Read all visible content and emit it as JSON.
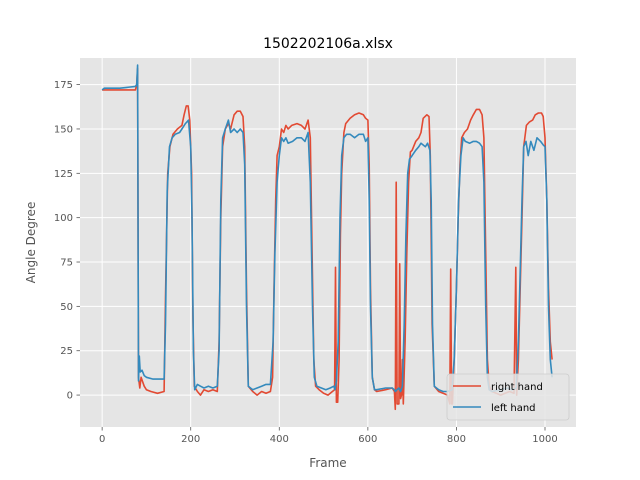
{
  "chart_data": {
    "type": "line",
    "title": "1502202106a.xlsx",
    "xlabel": "Frame",
    "ylabel": "Angle Degree",
    "xlim": [
      -50,
      1070
    ],
    "ylim": [
      -18,
      190
    ],
    "xticks": [
      0,
      200,
      400,
      600,
      800,
      1000
    ],
    "yticks": [
      0,
      25,
      50,
      75,
      100,
      125,
      150,
      175
    ],
    "grid": true,
    "legend": "lower-right",
    "series": [
      {
        "name": "right hand",
        "color": "#E24A33",
        "points": [
          [
            0,
            172
          ],
          [
            40,
            172
          ],
          [
            75,
            172
          ],
          [
            78,
            175
          ],
          [
            80,
            184
          ],
          [
            82,
            10
          ],
          [
            85,
            4
          ],
          [
            88,
            10
          ],
          [
            95,
            5
          ],
          [
            100,
            3
          ],
          [
            110,
            2
          ],
          [
            125,
            1
          ],
          [
            140,
            2
          ],
          [
            143,
            55
          ],
          [
            148,
            125
          ],
          [
            153,
            140
          ],
          [
            160,
            147
          ],
          [
            170,
            150
          ],
          [
            180,
            152
          ],
          [
            185,
            158
          ],
          [
            190,
            163
          ],
          [
            194,
            163
          ],
          [
            198,
            155
          ],
          [
            202,
            125
          ],
          [
            205,
            45
          ],
          [
            208,
            5
          ],
          [
            215,
            2
          ],
          [
            222,
            0
          ],
          [
            230,
            3
          ],
          [
            240,
            2
          ],
          [
            250,
            3
          ],
          [
            260,
            2
          ],
          [
            264,
            30
          ],
          [
            268,
            100
          ],
          [
            272,
            140
          ],
          [
            278,
            150
          ],
          [
            285,
            153
          ],
          [
            290,
            150
          ],
          [
            298,
            158
          ],
          [
            305,
            160
          ],
          [
            312,
            160
          ],
          [
            318,
            157
          ],
          [
            322,
            140
          ],
          [
            326,
            60
          ],
          [
            330,
            5
          ],
          [
            340,
            2
          ],
          [
            350,
            0
          ],
          [
            360,
            2
          ],
          [
            370,
            1
          ],
          [
            380,
            2
          ],
          [
            385,
            10
          ],
          [
            388,
            60
          ],
          [
            392,
            110
          ],
          [
            395,
            135
          ],
          [
            400,
            140
          ],
          [
            405,
            150
          ],
          [
            410,
            148
          ],
          [
            415,
            152
          ],
          [
            420,
            150
          ],
          [
            428,
            152
          ],
          [
            440,
            153
          ],
          [
            450,
            152
          ],
          [
            458,
            150
          ],
          [
            465,
            155
          ],
          [
            470,
            145
          ],
          [
            474,
            80
          ],
          [
            478,
            20
          ],
          [
            482,
            5
          ],
          [
            490,
            3
          ],
          [
            500,
            1
          ],
          [
            510,
            0
          ],
          [
            520,
            2
          ],
          [
            525,
            3
          ],
          [
            527,
            72
          ],
          [
            529,
            -4
          ],
          [
            532,
            -4
          ],
          [
            535,
            20
          ],
          [
            538,
            90
          ],
          [
            541,
            125
          ],
          [
            546,
            148
          ],
          [
            550,
            153
          ],
          [
            560,
            156
          ],
          [
            570,
            158
          ],
          [
            580,
            159
          ],
          [
            590,
            158
          ],
          [
            595,
            156
          ],
          [
            600,
            155
          ],
          [
            603,
            130
          ],
          [
            606,
            60
          ],
          [
            610,
            10
          ],
          [
            615,
            3
          ],
          [
            620,
            2
          ],
          [
            640,
            3
          ],
          [
            655,
            4
          ],
          [
            660,
            2
          ],
          [
            662,
            -8
          ],
          [
            664,
            120
          ],
          [
            666,
            -5
          ],
          [
            670,
            -5
          ],
          [
            672,
            74
          ],
          [
            674,
            -2
          ],
          [
            676,
            0
          ],
          [
            678,
            20
          ],
          [
            680,
            -5
          ],
          [
            684,
            30
          ],
          [
            688,
            80
          ],
          [
            692,
            120
          ],
          [
            696,
            137
          ],
          [
            700,
            138
          ],
          [
            708,
            143
          ],
          [
            715,
            145
          ],
          [
            720,
            148
          ],
          [
            725,
            156
          ],
          [
            733,
            158
          ],
          [
            738,
            157
          ],
          [
            741,
            135
          ],
          [
            745,
            40
          ],
          [
            750,
            5
          ],
          [
            760,
            2
          ],
          [
            770,
            1
          ],
          [
            780,
            0
          ],
          [
            785,
            -5
          ],
          [
            787,
            71
          ],
          [
            789,
            -5
          ],
          [
            791,
            -5
          ],
          [
            795,
            20
          ],
          [
            800,
            60
          ],
          [
            804,
            100
          ],
          [
            808,
            130
          ],
          [
            812,
            145
          ],
          [
            818,
            148
          ],
          [
            825,
            150
          ],
          [
            832,
            155
          ],
          [
            838,
            158
          ],
          [
            845,
            161
          ],
          [
            852,
            161
          ],
          [
            858,
            158
          ],
          [
            862,
            145
          ],
          [
            866,
            80
          ],
          [
            870,
            20
          ],
          [
            874,
            5
          ],
          [
            880,
            2
          ],
          [
            890,
            1
          ],
          [
            900,
            0
          ],
          [
            910,
            1
          ],
          [
            920,
            2
          ],
          [
            930,
            1
          ],
          [
            934,
            72
          ],
          [
            936,
            0
          ],
          [
            940,
            20
          ],
          [
            944,
            60
          ],
          [
            946,
            80
          ],
          [
            948,
            100
          ],
          [
            952,
            140
          ],
          [
            958,
            152
          ],
          [
            965,
            154
          ],
          [
            972,
            155
          ],
          [
            978,
            158
          ],
          [
            985,
            159
          ],
          [
            992,
            159
          ],
          [
            996,
            157
          ],
          [
            1000,
            145
          ],
          [
            1004,
            110
          ],
          [
            1008,
            60
          ],
          [
            1012,
            30
          ],
          [
            1016,
            20
          ]
        ]
      },
      {
        "name": "left hand",
        "color": "#348ABD",
        "points": [
          [
            0,
            172
          ],
          [
            5,
            173
          ],
          [
            40,
            173
          ],
          [
            75,
            174
          ],
          [
            78,
            175
          ],
          [
            80,
            186
          ],
          [
            82,
            8
          ],
          [
            84,
            22
          ],
          [
            86,
            13
          ],
          [
            90,
            14
          ],
          [
            95,
            11
          ],
          [
            100,
            10
          ],
          [
            115,
            9
          ],
          [
            135,
            9
          ],
          [
            140,
            9
          ],
          [
            143,
            40
          ],
          [
            147,
            115
          ],
          [
            152,
            140
          ],
          [
            158,
            145
          ],
          [
            165,
            147
          ],
          [
            175,
            148
          ],
          [
            180,
            150
          ],
          [
            188,
            153
          ],
          [
            195,
            155
          ],
          [
            200,
            140
          ],
          [
            203,
            100
          ],
          [
            206,
            25
          ],
          [
            209,
            3
          ],
          [
            215,
            6
          ],
          [
            222,
            5
          ],
          [
            230,
            4
          ],
          [
            240,
            5
          ],
          [
            250,
            4
          ],
          [
            260,
            5
          ],
          [
            264,
            25
          ],
          [
            268,
            110
          ],
          [
            272,
            145
          ],
          [
            278,
            150
          ],
          [
            285,
            155
          ],
          [
            290,
            148
          ],
          [
            298,
            150
          ],
          [
            305,
            148
          ],
          [
            312,
            150
          ],
          [
            318,
            148
          ],
          [
            322,
            130
          ],
          [
            326,
            50
          ],
          [
            330,
            5
          ],
          [
            340,
            3
          ],
          [
            350,
            4
          ],
          [
            360,
            5
          ],
          [
            370,
            6
          ],
          [
            380,
            6
          ],
          [
            386,
            30
          ],
          [
            390,
            80
          ],
          [
            395,
            120
          ],
          [
            400,
            135
          ],
          [
            405,
            145
          ],
          [
            410,
            143
          ],
          [
            415,
            145
          ],
          [
            420,
            142
          ],
          [
            430,
            143
          ],
          [
            440,
            145
          ],
          [
            450,
            145
          ],
          [
            458,
            143
          ],
          [
            465,
            148
          ],
          [
            470,
            120
          ],
          [
            475,
            50
          ],
          [
            479,
            10
          ],
          [
            485,
            5
          ],
          [
            495,
            4
          ],
          [
            505,
            3
          ],
          [
            515,
            4
          ],
          [
            523,
            5
          ],
          [
            526,
            3
          ],
          [
            529,
            8
          ],
          [
            533,
            30
          ],
          [
            537,
            100
          ],
          [
            541,
            135
          ],
          [
            546,
            145
          ],
          [
            552,
            147
          ],
          [
            560,
            147
          ],
          [
            570,
            145
          ],
          [
            580,
            147
          ],
          [
            590,
            147
          ],
          [
            595,
            143
          ],
          [
            600,
            145
          ],
          [
            603,
            110
          ],
          [
            606,
            50
          ],
          [
            610,
            10
          ],
          [
            615,
            3
          ],
          [
            620,
            3
          ],
          [
            640,
            4
          ],
          [
            655,
            4
          ],
          [
            660,
            3
          ],
          [
            662,
            2
          ],
          [
            666,
            3
          ],
          [
            670,
            4
          ],
          [
            674,
            2
          ],
          [
            678,
            5
          ],
          [
            682,
            40
          ],
          [
            686,
            90
          ],
          [
            690,
            125
          ],
          [
            694,
            133
          ],
          [
            700,
            135
          ],
          [
            708,
            138
          ],
          [
            715,
            140
          ],
          [
            720,
            142
          ],
          [
            730,
            140
          ],
          [
            735,
            142
          ],
          [
            740,
            138
          ],
          [
            743,
            110
          ],
          [
            746,
            40
          ],
          [
            750,
            5
          ],
          [
            760,
            3
          ],
          [
            770,
            2
          ],
          [
            780,
            2
          ],
          [
            790,
            3
          ],
          [
            795,
            20
          ],
          [
            800,
            60
          ],
          [
            805,
            110
          ],
          [
            810,
            135
          ],
          [
            815,
            145
          ],
          [
            820,
            143
          ],
          [
            830,
            142
          ],
          [
            838,
            143
          ],
          [
            845,
            143
          ],
          [
            852,
            142
          ],
          [
            858,
            140
          ],
          [
            862,
            120
          ],
          [
            866,
            50
          ],
          [
            870,
            10
          ],
          [
            874,
            3
          ],
          [
            880,
            2
          ],
          [
            900,
            3
          ],
          [
            915,
            4
          ],
          [
            925,
            3
          ],
          [
            935,
            4
          ],
          [
            940,
            30
          ],
          [
            944,
            70
          ],
          [
            948,
            110
          ],
          [
            952,
            140
          ],
          [
            957,
            143
          ],
          [
            962,
            135
          ],
          [
            968,
            143
          ],
          [
            975,
            138
          ],
          [
            982,
            145
          ],
          [
            990,
            143
          ],
          [
            996,
            141
          ],
          [
            1000,
            140
          ],
          [
            1004,
            110
          ],
          [
            1008,
            50
          ],
          [
            1012,
            20
          ],
          [
            1016,
            10
          ]
        ]
      }
    ]
  }
}
